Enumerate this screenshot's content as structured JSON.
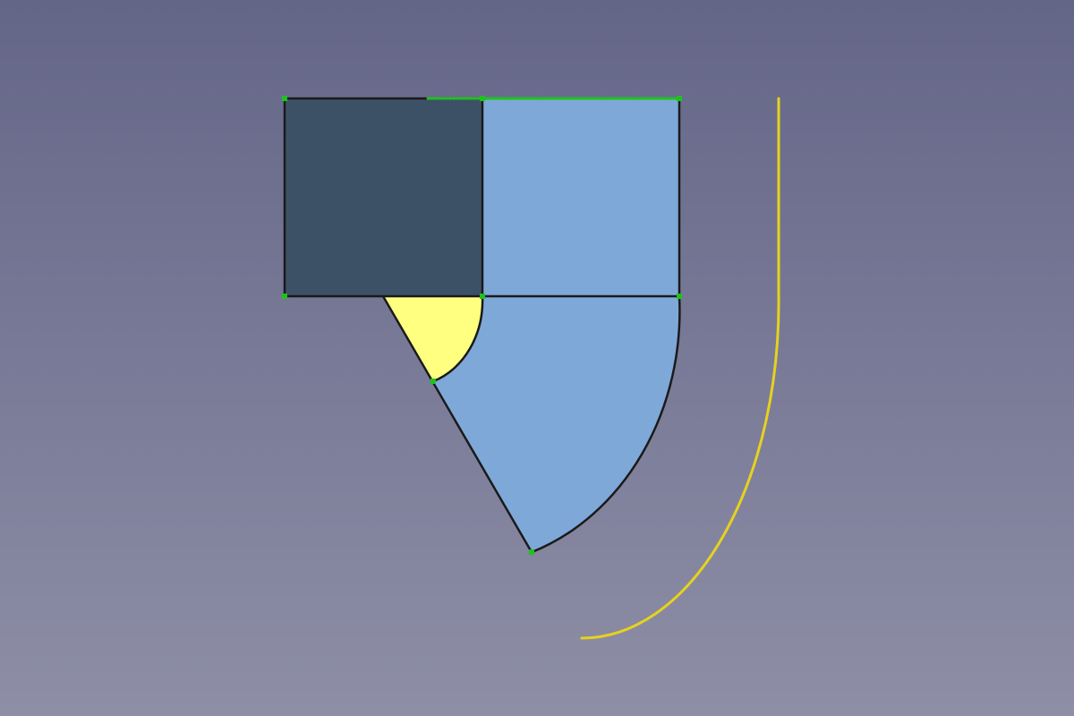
{
  "view": {
    "background_top": "#646688",
    "background_bottom": "#8e8ea6"
  },
  "colors": {
    "selected_face": "#3d5166",
    "face": "#7ea8d8",
    "highlighted_face": "#ffff80",
    "edge": "#1a1a1a",
    "selected_edge": "#1fc11f",
    "vertex": "#1fc11f",
    "highlighted_edge": "#e6d21e"
  },
  "shapes": [
    {
      "name": "dark-square-face",
      "role": "selected_face"
    },
    {
      "name": "upper-right-square-face",
      "role": "face"
    },
    {
      "name": "quarter-ring-face",
      "role": "face"
    },
    {
      "name": "small-sector-face",
      "role": "highlighted_face"
    },
    {
      "name": "outer-arc-curve",
      "role": "highlighted_edge"
    }
  ]
}
